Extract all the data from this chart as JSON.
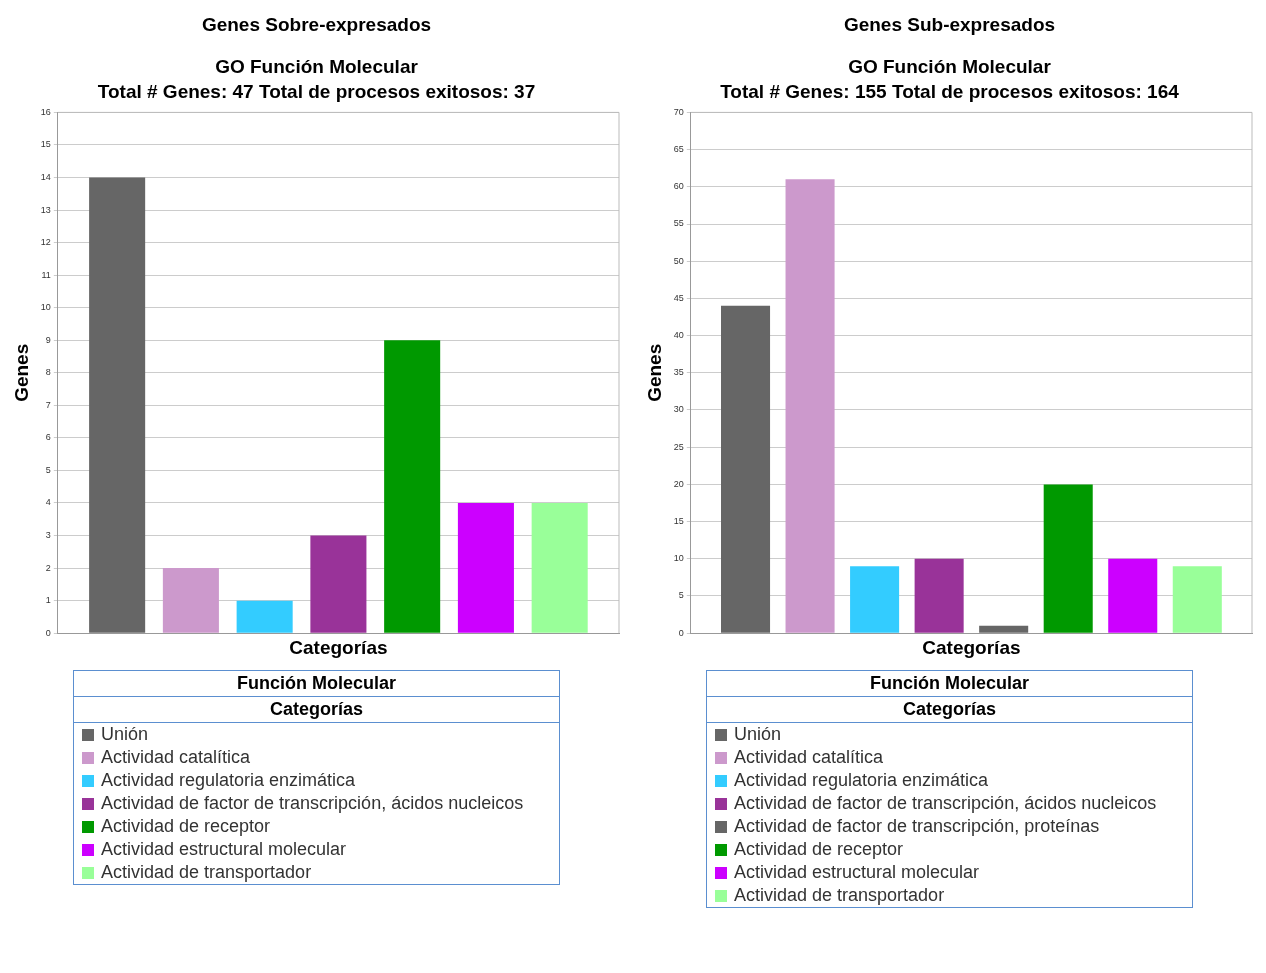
{
  "chart_data": [
    {
      "type": "bar",
      "title": "Genes Sobre-expresados",
      "subtitle": "GO  Función Molecular\nTotal # Genes: 47  Total de procesos exitosos: 37",
      "xlabel": "Categorías",
      "ylabel": "Genes",
      "legend_title": "Función Molecular",
      "annotations": [
        "Categorías"
      ],
      "categories": [
        null
      ],
      "ylim": [
        0,
        16
      ],
      "yticks": [
        0,
        1,
        2,
        3,
        4,
        5,
        6,
        7,
        8,
        9,
        10,
        11,
        12,
        13,
        14,
        15,
        16
      ],
      "grid": "y",
      "legend": "bottom",
      "series": [
        {
          "name": "Unión",
          "color": "#666666",
          "values": [
            14
          ]
        },
        {
          "name": "Actividad catalítica",
          "color": "#cc99cc",
          "values": [
            2
          ]
        },
        {
          "name": "Actividad regulatoria enzimática",
          "color": "#33ccff",
          "values": [
            1
          ]
        },
        {
          "name": "Actividad de factor de transcripción, ácidos nucleicos",
          "color": "#993399",
          "values": [
            3
          ]
        },
        {
          "name": "Actividad de receptor",
          "color": "#009900",
          "values": [
            9
          ]
        },
        {
          "name": "Actividad estructural molecular",
          "color": "#cc00ff",
          "values": [
            4
          ]
        },
        {
          "name": "Actividad de transportador",
          "color": "#99ff99",
          "values": [
            4
          ]
        }
      ]
    },
    {
      "type": "bar",
      "title": "Genes Sub-expresados",
      "subtitle": "GO  Función Molecular\nTotal # Genes: 155  Total de procesos exitosos: 164",
      "xlabel": "Categorías",
      "ylabel": "Genes",
      "legend_title": "Función Molecular",
      "annotations": [
        "Categorías"
      ],
      "categories": [
        null
      ],
      "ylim": [
        0,
        70
      ],
      "yticks": [
        0,
        5,
        10,
        15,
        20,
        25,
        30,
        35,
        40,
        45,
        50,
        55,
        60,
        65,
        70
      ],
      "grid": "y",
      "legend": "bottom",
      "series": [
        {
          "name": "Unión",
          "color": "#666666",
          "values": [
            44
          ]
        },
        {
          "name": "Actividad catalítica",
          "color": "#cc99cc",
          "values": [
            61
          ]
        },
        {
          "name": "Actividad regulatoria enzimática",
          "color": "#33ccff",
          "values": [
            9
          ]
        },
        {
          "name": "Actividad de factor de transcripción, ácidos nucleicos",
          "color": "#993399",
          "values": [
            10
          ]
        },
        {
          "name": "Actividad de factor de transcripción, proteínas",
          "color": "#666666",
          "values": [
            1
          ]
        },
        {
          "name": "Actividad de receptor",
          "color": "#009900",
          "values": [
            20
          ]
        },
        {
          "name": "Actividad estructural molecular",
          "color": "#cc00ff",
          "values": [
            10
          ]
        },
        {
          "name": "Actividad de transportador",
          "color": "#99ff99",
          "values": [
            9
          ]
        }
      ]
    }
  ]
}
